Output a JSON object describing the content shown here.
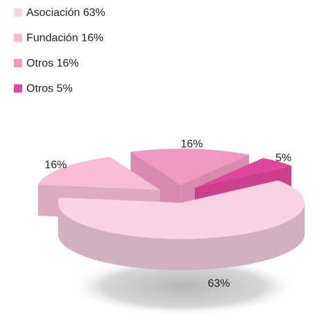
{
  "chart_data": {
    "type": "pie",
    "categories": [
      "Asociación 63%",
      "Fundación 16%",
      "Otros 16%",
      "Otros 5%"
    ],
    "values": [
      63,
      16,
      16,
      5
    ],
    "value_labels": [
      "63%",
      "16%",
      "16%",
      "5%"
    ],
    "colors": [
      "#f9d3e3",
      "#f6bdd5",
      "#f098c4",
      "#e0479a"
    ],
    "legend": "top-left",
    "exploded": true,
    "three_d": true
  }
}
